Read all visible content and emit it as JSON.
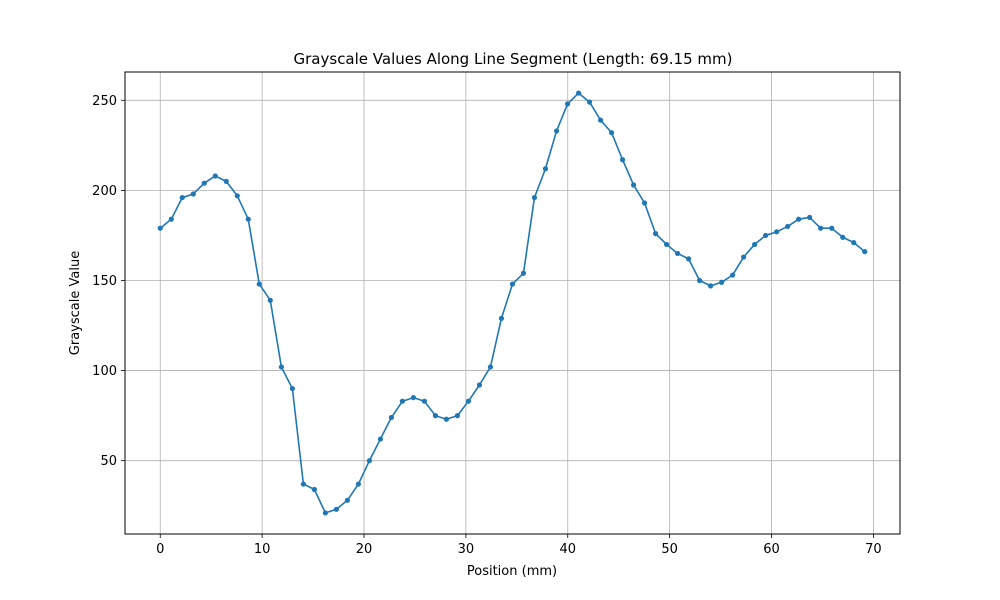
{
  "chart_data": {
    "type": "line",
    "title": "Grayscale Values Along Line Segment (Length: 69.15 mm)",
    "xlabel": "Position (mm)",
    "ylabel": "Grayscale Value",
    "xlim": [
      -3.46,
      72.61
    ],
    "ylim": [
      9.3,
      265.7
    ],
    "xticks": [
      0,
      10,
      20,
      30,
      40,
      50,
      60,
      70
    ],
    "yticks": [
      50,
      100,
      150,
      200,
      250
    ],
    "grid": true,
    "line_color": "#1f77b4",
    "marker": "circle",
    "series": [
      {
        "x": [
          0,
          1.08,
          2.16,
          3.24,
          4.32,
          5.4,
          6.48,
          7.56,
          8.64,
          9.72,
          10.8,
          11.89,
          12.97,
          14.05,
          15.13,
          16.21,
          17.29,
          18.37,
          19.45,
          20.53,
          21.61,
          22.69,
          23.77,
          24.85,
          25.93,
          27.01,
          28.09,
          29.17,
          30.25,
          31.33,
          32.41,
          33.49,
          34.57,
          35.65,
          36.73,
          37.81,
          38.9,
          39.98,
          41.06,
          42.14,
          43.22,
          44.3,
          45.38,
          46.46,
          47.54,
          48.62,
          49.7,
          50.78,
          51.86,
          52.94,
          54.02,
          55.1,
          56.18,
          57.26,
          58.34,
          59.42,
          60.5,
          61.58,
          62.66,
          63.74,
          64.82,
          65.91,
          66.99,
          68.07,
          69.15
        ],
        "values": [
          179,
          184,
          196,
          198,
          204,
          208,
          205,
          197,
          184,
          148,
          139,
          102,
          90,
          37,
          34,
          21,
          23,
          28,
          37,
          50,
          62,
          74,
          83,
          85,
          83,
          75,
          73,
          75,
          83,
          92,
          102,
          129,
          148,
          154,
          196,
          212,
          233,
          248,
          254,
          249,
          239,
          232,
          217,
          203,
          193,
          176,
          170,
          165,
          162,
          150,
          147,
          149,
          153,
          163,
          170,
          175,
          177,
          180,
          184,
          185,
          179,
          179,
          174,
          171,
          166
        ]
      }
    ]
  }
}
